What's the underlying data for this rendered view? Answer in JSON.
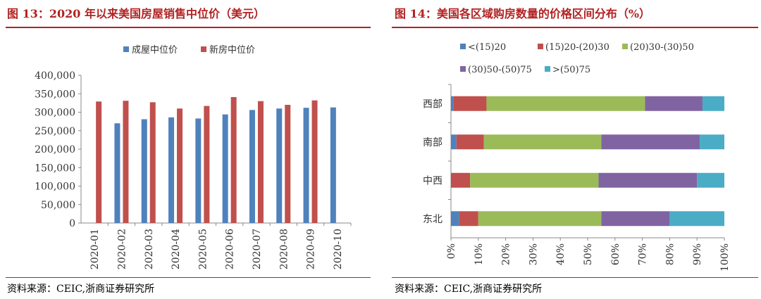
{
  "left": {
    "title": "图 13：2020 年以来美国房屋销售中位价（美元）",
    "source": "资料来源：CEIC,浙商证券研究所"
  },
  "right": {
    "title": "图 14：美国各区域购房数量的价格区间分布（%）",
    "source": "资料来源：CEIC,浙商证券研究所"
  },
  "chart_data": [
    {
      "type": "bar",
      "title": "图 13：2020 年以来美国房屋销售中位价（美元）",
      "categories": [
        "2020-01",
        "2020-02",
        "2020-03",
        "2020-04",
        "2020-05",
        "2020-06",
        "2020-07",
        "2020-08",
        "2020-09",
        "2020-10"
      ],
      "series": [
        {
          "name": "成屋中位价",
          "color": "#4f81bd",
          "values": [
            null,
            270000,
            281000,
            286000,
            283000,
            294000,
            306000,
            310000,
            312000,
            313000
          ]
        },
        {
          "name": "新房中位价",
          "color": "#c0504d",
          "values": [
            329000,
            331000,
            327000,
            310000,
            317000,
            341000,
            330000,
            320000,
            332000,
            null
          ]
        }
      ],
      "ylim": [
        0,
        400000
      ],
      "yticks": [
        0,
        50000,
        100000,
        150000,
        200000,
        250000,
        300000,
        350000,
        400000
      ],
      "ytick_labels": [
        "0",
        "50,000",
        "100,000",
        "150,000",
        "200,000",
        "250,000",
        "300,000",
        "350,000",
        "400,000"
      ],
      "grid": false,
      "legend": "top"
    },
    {
      "type": "bar",
      "orientation": "horizontal",
      "stacked": "percent",
      "title": "图 14：美国各区域购房数量的价格区间分布（%）",
      "categories": [
        "东北",
        "中西",
        "南部",
        "西部"
      ],
      "series": [
        {
          "name": "<(15)20",
          "color": "#4f81bd",
          "values": [
            3,
            0,
            2,
            1
          ]
        },
        {
          "name": "(15)20-(20)30",
          "color": "#c0504d",
          "values": [
            7,
            7,
            10,
            12
          ]
        },
        {
          "name": "(20)30-(30)50",
          "color": "#9bbb59",
          "values": [
            45,
            47,
            43,
            58
          ]
        },
        {
          "name": "(30)50-(50)75",
          "color": "#8064a2",
          "values": [
            25,
            36,
            36,
            21
          ]
        },
        {
          "name": ">(50)75",
          "color": "#4bacc6",
          "values": [
            20,
            10,
            9,
            8
          ]
        }
      ],
      "xlim": [
        0,
        100
      ],
      "xtick_labels": [
        "0%",
        "10%",
        "20%",
        "30%",
        "40%",
        "50%",
        "60%",
        "70%",
        "80%",
        "90%",
        "100%"
      ],
      "grid": false,
      "legend": "top"
    }
  ]
}
